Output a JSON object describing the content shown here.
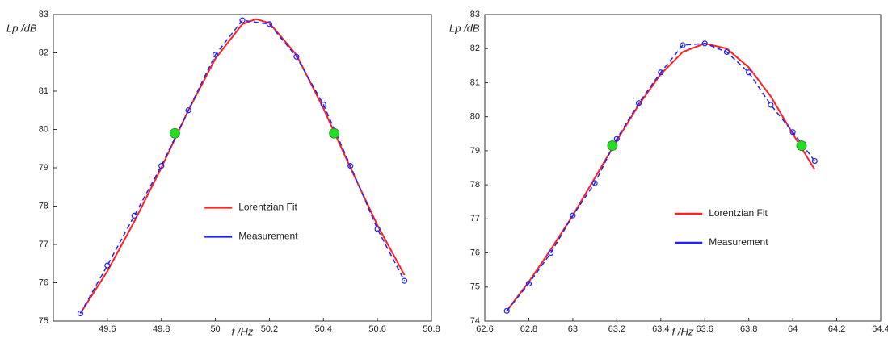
{
  "chart_data": [
    {
      "type": "line",
      "y_label": "Lp /dB",
      "x_label": "f /Hz",
      "xlim": [
        49.4,
        50.8
      ],
      "xticks": [
        49.6,
        49.8,
        50,
        50.2,
        50.4,
        50.6,
        50.8
      ],
      "ylim": [
        75,
        83
      ],
      "yticks": [
        75,
        76,
        77,
        78,
        79,
        80,
        81,
        82,
        83
      ],
      "legend": "lower center",
      "series": [
        {
          "name": "Lorentzian Fit",
          "color": "#ff2020",
          "linestyle": "solid",
          "marker": "none",
          "x": [
            49.5,
            49.6,
            49.7,
            49.8,
            49.9,
            50.0,
            50.1,
            50.15,
            50.2,
            50.3,
            50.4,
            50.5,
            50.6,
            50.7
          ],
          "values": [
            75.2,
            76.3,
            77.6,
            79.0,
            80.5,
            81.85,
            82.75,
            82.88,
            82.78,
            81.95,
            80.55,
            79.0,
            77.5,
            76.2
          ]
        },
        {
          "name": "Measurement",
          "color": "#2020ff",
          "linestyle": "dashed",
          "marker": "o",
          "x": [
            49.5,
            49.6,
            49.7,
            49.8,
            49.9,
            50.0,
            50.1,
            50.2,
            50.3,
            50.4,
            50.5,
            50.6,
            50.7
          ],
          "values": [
            75.2,
            76.45,
            77.75,
            79.05,
            80.5,
            81.95,
            82.85,
            82.75,
            81.9,
            80.65,
            79.05,
            77.4,
            76.05
          ]
        },
        {
          "color": "#22dd22",
          "linestyle": "none",
          "marker": "filled",
          "x": [
            49.85,
            50.44
          ],
          "values": [
            79.9,
            79.9
          ]
        }
      ]
    },
    {
      "type": "line",
      "y_label": "Lp /dB",
      "x_label": "f /Hz",
      "xlim": [
        62.6,
        64.4
      ],
      "xticks": [
        62.6,
        62.8,
        63,
        63.2,
        63.4,
        63.6,
        63.8,
        64,
        64.2,
        64.4
      ],
      "ylim": [
        74,
        83
      ],
      "yticks": [
        74,
        75,
        76,
        77,
        78,
        79,
        80,
        81,
        82,
        83
      ],
      "legend": "lower center",
      "series": [
        {
          "name": "Lorentzian Fit",
          "color": "#ff2020",
          "linestyle": "solid",
          "marker": "none",
          "x": [
            62.7,
            62.8,
            62.9,
            63.0,
            63.1,
            63.2,
            63.3,
            63.4,
            63.5,
            63.6,
            63.7,
            63.8,
            63.9,
            64.0,
            64.1
          ],
          "values": [
            74.3,
            75.15,
            76.1,
            77.1,
            78.2,
            79.3,
            80.35,
            81.25,
            81.9,
            82.15,
            82.0,
            81.45,
            80.6,
            79.5,
            78.45
          ]
        },
        {
          "name": "Measurement",
          "color": "#2020ff",
          "linestyle": "dashed",
          "marker": "o",
          "x": [
            62.7,
            62.8,
            62.9,
            63.0,
            63.1,
            63.2,
            63.3,
            63.4,
            63.5,
            63.6,
            63.7,
            63.8,
            63.9,
            64.0,
            64.1
          ],
          "values": [
            74.3,
            75.1,
            76.0,
            77.1,
            78.05,
            79.35,
            80.4,
            81.3,
            82.1,
            82.15,
            81.9,
            81.3,
            80.35,
            79.55,
            78.7
          ]
        },
        {
          "color": "#22dd22",
          "linestyle": "none",
          "marker": "filled",
          "x": [
            63.18,
            64.04
          ],
          "values": [
            79.15,
            79.15
          ]
        }
      ]
    }
  ]
}
